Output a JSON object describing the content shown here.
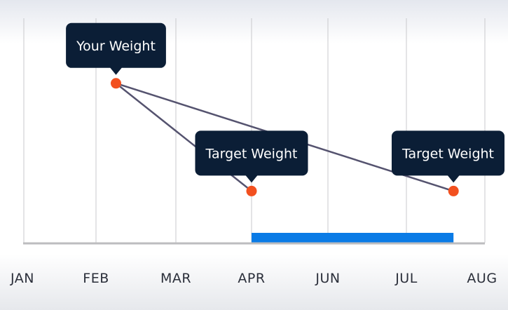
{
  "chart_data": {
    "type": "line",
    "title": "",
    "xlabel": "",
    "ylabel": "",
    "x_ticks": [
      "JAN",
      "FEB",
      "MAR",
      "APR",
      "JUN",
      "JUL",
      "AUG"
    ],
    "grid": true,
    "series": [
      {
        "points": [
          {
            "x": 1.25,
            "y": 0.71
          },
          {
            "x": 3.0,
            "y": 0.23
          }
        ]
      },
      {
        "points": [
          {
            "x": 1.25,
            "y": 0.71
          },
          {
            "x": 5.6,
            "y": 0.23
          }
        ]
      }
    ],
    "annotations": [
      {
        "label": "Your Weight",
        "x": 1.25,
        "y": 0.71
      },
      {
        "label": "Target Weight",
        "x": 3.0,
        "y": 0.23
      },
      {
        "label": "Target Weight",
        "x": 5.6,
        "y": 0.23
      }
    ],
    "range_bar": {
      "x_start": 3.0,
      "x_end": 5.6
    },
    "colors": {
      "line": "#55536f",
      "point": "#f2501f",
      "tooltip": "#0b1e36",
      "range_bar": "#0a7be6",
      "grid": "#c9c9cc",
      "axis": "#bdbdbf"
    }
  }
}
